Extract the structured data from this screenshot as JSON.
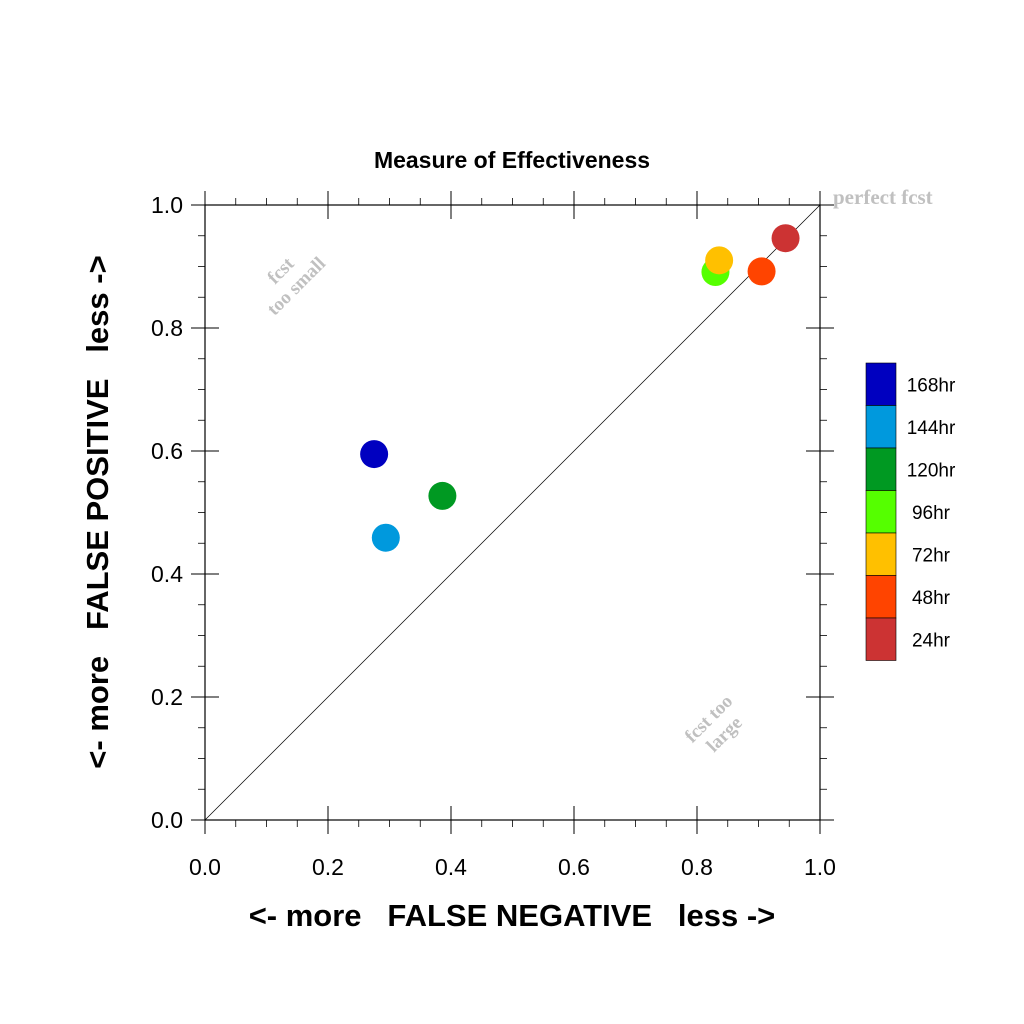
{
  "chart_data": {
    "type": "scatter",
    "title": "Measure of Effectiveness",
    "xlabel": "<- more   FALSE NEGATIVE   less ->",
    "ylabel": "<- more   FALSE POSITIVE   less ->",
    "xlim": [
      0.0,
      1.0
    ],
    "ylim": [
      0.0,
      1.0
    ],
    "xticks": [
      "0.0",
      "0.2",
      "0.4",
      "0.6",
      "0.8",
      "1.0"
    ],
    "yticks": [
      "0.0",
      "0.2",
      "0.4",
      "0.6",
      "0.8",
      "1.0"
    ],
    "grid": false,
    "reference_line": "diagonal",
    "legend_position": "right",
    "series": [
      {
        "name": "168hr",
        "color": "#0000c0",
        "x": 0.275,
        "y": 0.595
      },
      {
        "name": "144hr",
        "color": "#0099dd",
        "x": 0.294,
        "y": 0.459
      },
      {
        "name": "120hr",
        "color": "#009922",
        "x": 0.386,
        "y": 0.527
      },
      {
        "name": "96hr",
        "color": "#55ff00",
        "x": 0.83,
        "y": 0.891
      },
      {
        "name": "72hr",
        "color": "#ffc000",
        "x": 0.836,
        "y": 0.91
      },
      {
        "name": "48hr",
        "color": "#ff4400",
        "x": 0.905,
        "y": 0.892
      },
      {
        "name": "24hr",
        "color": "#cc3333",
        "x": 0.944,
        "y": 0.946
      }
    ],
    "annotations": {
      "perfect": "perfect fcst",
      "small_line1": "fcst",
      "small_line2": "too small",
      "large_line1": "fcst too",
      "large_line2": "large"
    }
  }
}
